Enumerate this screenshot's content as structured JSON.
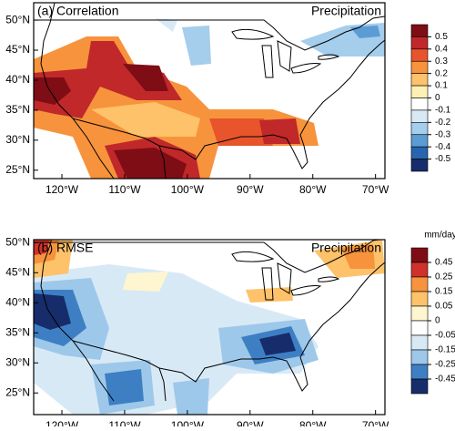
{
  "xaxis": {
    "ticks": [
      {
        "value": -120,
        "label": "120°W"
      },
      {
        "value": -110,
        "label": "110°W"
      },
      {
        "value": -100,
        "label": "100°W"
      },
      {
        "value": -90,
        "label": "90°W"
      },
      {
        "value": -80,
        "label": "80°W"
      },
      {
        "value": -70,
        "label": "70°W"
      }
    ]
  },
  "yaxis": {
    "ticks": [
      {
        "value": 25,
        "label": "25°N"
      },
      {
        "value": 30,
        "label": "30°N"
      },
      {
        "value": 35,
        "label": "35°N"
      },
      {
        "value": 40,
        "label": "40°N"
      },
      {
        "value": 45,
        "label": "45°N"
      },
      {
        "value": 50,
        "label": "50°N"
      }
    ]
  },
  "panels": [
    {
      "title": "(a) Correlation",
      "variable": "Precipitation",
      "xlim": [
        -124.5,
        -68.5
      ],
      "ylim": [
        23.6,
        52.9
      ],
      "colorbar": {
        "levels": [
          0.5,
          0.4,
          0.3,
          0.2,
          0.1,
          0,
          -0.1,
          -0.2,
          -0.3,
          -0.4,
          -0.5
        ],
        "colors": [
          "#7f0d15",
          "#c0282a",
          "#e8542b",
          "#f7933c",
          "#fdc26a",
          "#fef0b2",
          "#ffffff",
          "#d8e9f6",
          "#a5cdec",
          "#5b9cd5",
          "#2765b0",
          "#162c6b"
        ]
      }
    },
    {
      "title": "(b) RMSE",
      "variable": "Precipitation",
      "units": "mm/day",
      "xlim": [
        -124.5,
        -68.5
      ],
      "ylim": [
        21.4,
        50.5
      ],
      "colorbar": {
        "levels": [
          0.45,
          0.25,
          0.15,
          0.05,
          0,
          -0.05,
          -0.15,
          -0.25,
          -0.45
        ],
        "colors": [
          "#7f0d15",
          "#d0312a",
          "#f7933c",
          "#fdc26a",
          "#fef6d0",
          "#ffffff",
          "#d8e9f6",
          "#9dc8ea",
          "#3e7fc4",
          "#162c6b"
        ]
      }
    }
  ]
}
